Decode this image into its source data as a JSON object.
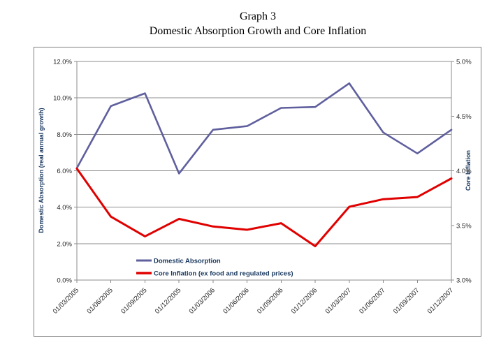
{
  "page": {
    "title_line1": "Graph 3",
    "title_line2": "Domestic Absorption Growth and Core Inflation"
  },
  "chart_data": {
    "type": "line",
    "title": [
      "Graph 3",
      "Domestic Absorption Growth and Core Inflation"
    ],
    "categories": [
      "01/03/2005",
      "01/06/2005",
      "01/09/2005",
      "01/12/2005",
      "01/03/2006",
      "01/06/2006",
      "01/09/2006",
      "01/12/2006",
      "01/03/2007",
      "01/06/2007",
      "01/09/2007",
      "01/12/2007"
    ],
    "series": [
      {
        "name": "Domestic Absorption",
        "axis": "left",
        "color": "#5F5F9E",
        "stroke_width": 2.6,
        "values": [
          6.15,
          9.55,
          10.25,
          5.85,
          8.25,
          8.45,
          9.45,
          9.5,
          10.8,
          8.1,
          6.95,
          8.25
        ]
      },
      {
        "name": "Core Inflation (ex food and regulated prices)",
        "axis": "right",
        "color": "#E00000",
        "stroke_width": 3,
        "values": [
          4.02,
          3.58,
          3.4,
          3.56,
          3.49,
          3.46,
          3.52,
          3.31,
          3.67,
          3.74,
          3.76,
          3.93
        ]
      }
    ],
    "left_axis": {
      "title": "Domestic Absorption (real annual growth)",
      "min": 0,
      "max": 12,
      "step": 2,
      "ticks": [
        "12.0%",
        "10.0%",
        "8.0%",
        "6.0%",
        "4.0%",
        "2.0%",
        "0.0%"
      ]
    },
    "right_axis": {
      "title": "Core Inflation",
      "min": 3,
      "max": 5,
      "step": 0.5,
      "ticks": [
        "5.0%",
        "4.5%",
        "4.0%",
        "3.5%",
        "3.0%"
      ]
    },
    "legend": {
      "position": "inside-bottom-left",
      "entries": [
        "Domestic Absorption",
        "Core Inflation (ex food and regulated prices)"
      ]
    },
    "grid": {
      "horizontal": true,
      "vertical": false
    }
  },
  "colors": {
    "background": "#FFFFFF",
    "frame_border": "#808080",
    "gridline": "#8C8C8C",
    "tick_text": "#262626",
    "axis_title_text": "#17365D",
    "legend_text": "#17365D",
    "series_blue": "#5F5F9E",
    "series_red": "#E00000"
  }
}
